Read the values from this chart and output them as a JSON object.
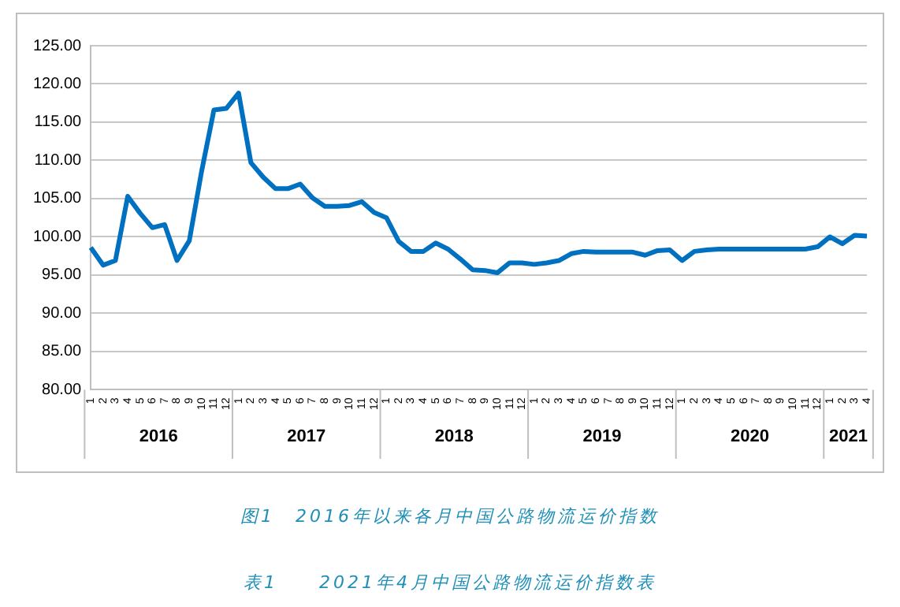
{
  "chart_data": {
    "type": "line",
    "categories": [
      "1",
      "2",
      "3",
      "4",
      "5",
      "6",
      "7",
      "8",
      "9",
      "10",
      "11",
      "12",
      "1",
      "2",
      "3",
      "4",
      "5",
      "6",
      "7",
      "8",
      "9",
      "10",
      "11",
      "12",
      "1",
      "2",
      "3",
      "4",
      "5",
      "6",
      "7",
      "8",
      "9",
      "10",
      "11",
      "12",
      "1",
      "2",
      "3",
      "4",
      "5",
      "6",
      "7",
      "8",
      "9",
      "10",
      "11",
      "12",
      "1",
      "2",
      "3",
      "4",
      "5",
      "6",
      "7",
      "8",
      "9",
      "10",
      "11",
      "12",
      "1",
      "2",
      "3",
      "4"
    ],
    "series": [
      {
        "color": "#0070c0",
        "values": [
          98.6,
          96.3,
          96.9,
          105.3,
          103.1,
          101.2,
          101.6,
          96.9,
          99.5,
          108.6,
          116.6,
          116.8,
          118.8,
          109.7,
          107.8,
          106.3,
          106.3,
          106.9,
          105.1,
          104.0,
          104.0,
          104.1,
          104.6,
          103.2,
          102.5,
          99.4,
          98.1,
          98.1,
          99.2,
          98.4,
          97.1,
          95.7,
          95.6,
          95.3,
          96.6,
          96.6,
          96.4,
          96.6,
          96.9,
          97.8,
          98.1,
          98.0,
          98.0,
          98.0,
          98.0,
          97.6,
          98.2,
          98.3,
          96.9,
          98.1,
          98.3,
          98.4,
          98.4,
          98.4,
          98.4,
          98.4,
          98.4,
          98.4,
          98.4,
          98.7,
          100.0,
          99.1,
          100.2,
          100.1
        ]
      }
    ],
    "ylim": [
      80,
      125
    ],
    "yticks": [
      {
        "value": 80,
        "label": "80.00"
      },
      {
        "value": 85,
        "label": "85.00"
      },
      {
        "value": 90,
        "label": "90.00"
      },
      {
        "value": 95,
        "label": "95.00"
      },
      {
        "value": 100,
        "label": "100.00"
      },
      {
        "value": 105,
        "label": "105.00"
      },
      {
        "value": 110,
        "label": "110.00"
      },
      {
        "value": 115,
        "label": "115.00"
      },
      {
        "value": 120,
        "label": "120.00"
      },
      {
        "value": 125,
        "label": "125.00"
      }
    ],
    "grid": "y",
    "legend": false,
    "marker": "none",
    "line_style": "solid",
    "annotations": [
      "2016",
      "2017",
      "2018",
      "2019",
      "2020",
      "2021",
      "图1　2016年以来各月中国公路物流运价指数",
      "表1　　2021年4月中国公路物流运价指数表"
    ]
  }
}
